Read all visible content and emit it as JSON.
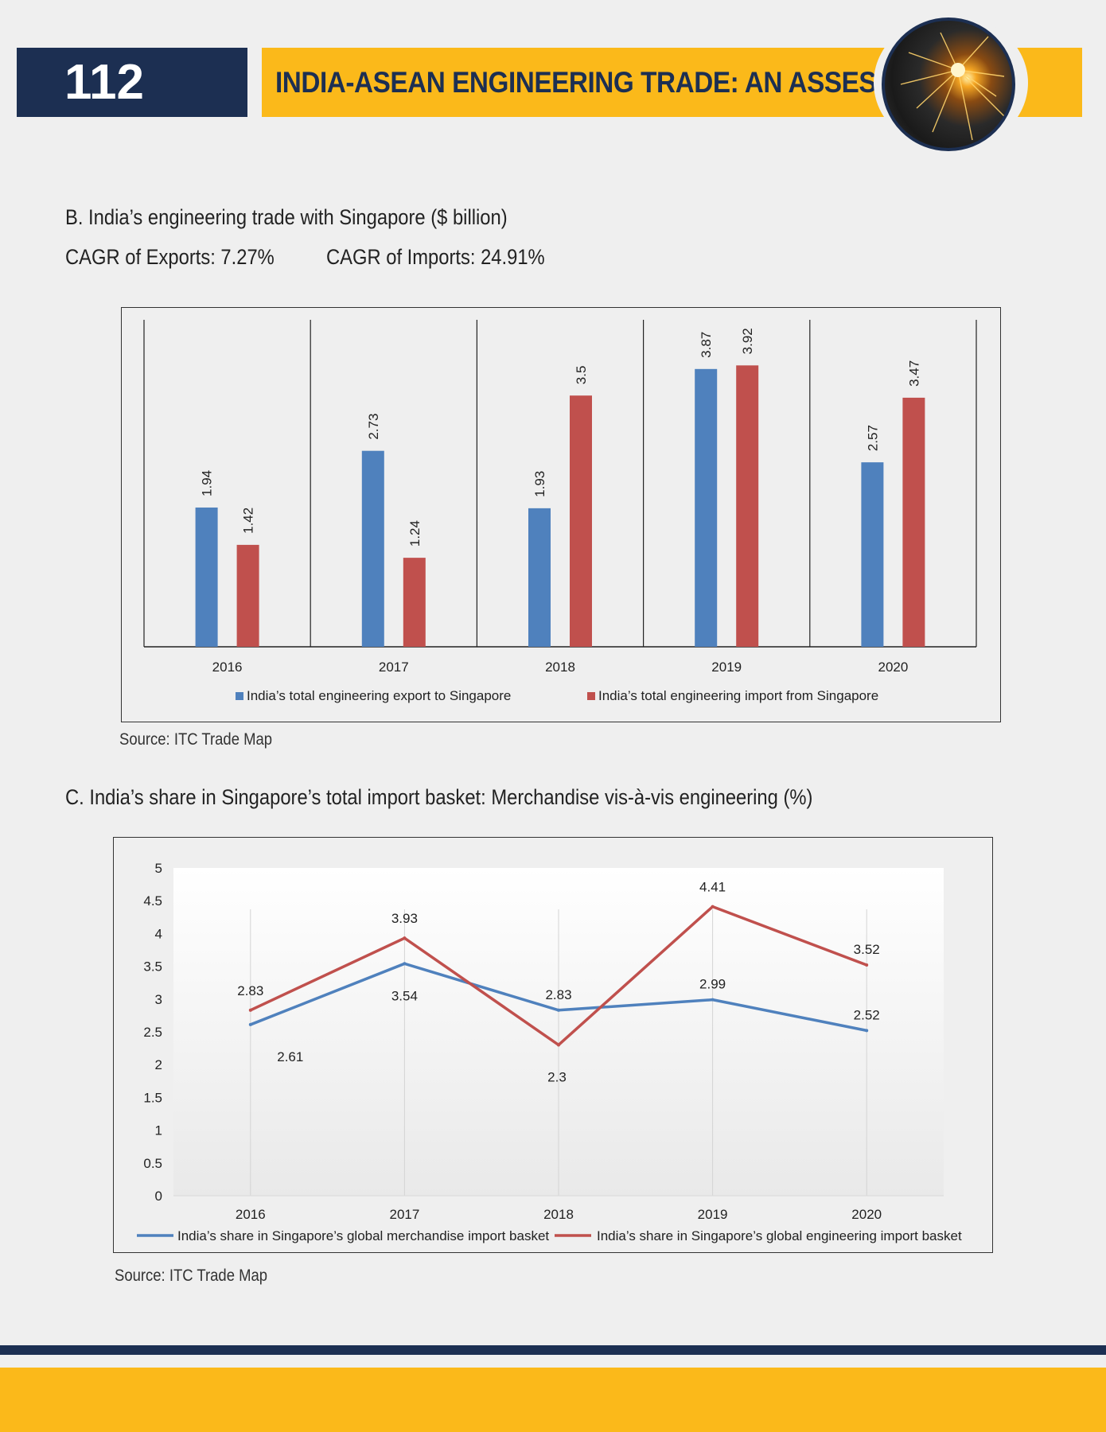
{
  "header": {
    "page_number": "112",
    "title": "INDIA-ASEAN ENGINEERING TRADE: AN ASSESSMENT",
    "badge_icon": "sparks-grinding-icon",
    "colors": {
      "navy": "#1c2f52",
      "yellow": "#fbb91a"
    }
  },
  "section_b": {
    "heading": "B. India’s engineering trade with Singapore ($ billion)",
    "cagr_exports": "CAGR of Exports: 7.27%",
    "cagr_imports": "CAGR of Imports: 24.91%",
    "source": "Source: ITC Trade Map"
  },
  "section_c": {
    "heading": "C. India’s share in Singapore’s total import basket: Merchandise vis-à-vis engineering (%)",
    "source": "Source: ITC Trade Map"
  },
  "chart_data": [
    {
      "type": "bar",
      "categories": [
        "2016",
        "2017",
        "2018",
        "2019",
        "2020"
      ],
      "series": [
        {
          "name": "India’s total engineering export to Singapore",
          "values": [
            1.94,
            2.73,
            1.93,
            3.87,
            2.57
          ],
          "labels": [
            "1.94",
            "2.73",
            "1.93",
            "3.87",
            "2.57"
          ],
          "color": "#4f81bd"
        },
        {
          "name": "India’s total engineering import from Singapore",
          "values": [
            1.42,
            1.24,
            3.5,
            3.92,
            3.47
          ],
          "labels": [
            "1.42",
            "1.24",
            "3.5",
            "3.92",
            "3.47"
          ],
          "color": "#c0504d"
        }
      ],
      "ylim": [
        0,
        4.4
      ],
      "legend": "bottom",
      "grid": false
    },
    {
      "type": "line",
      "categories": [
        "2016",
        "2017",
        "2018",
        "2019",
        "2020"
      ],
      "series": [
        {
          "name": "India’s share in Singapore’s global merchandise import basket",
          "values": [
            2.61,
            3.54,
            2.83,
            2.99,
            2.52
          ],
          "labels": [
            "2.61",
            "3.54",
            "2.83",
            "2.99",
            "2.52"
          ],
          "color": "#4f81bd"
        },
        {
          "name": "India’s share in Singapore’s global engineering import basket",
          "values": [
            2.83,
            3.93,
            2.3,
            4.41,
            3.52
          ],
          "labels": [
            "2.83",
            "3.93",
            "2.3",
            "4.41",
            "3.52"
          ],
          "color": "#c0504d"
        }
      ],
      "yticks": [
        "0",
        "0.5",
        "1",
        "1.5",
        "2",
        "2.5",
        "3",
        "3.5",
        "4",
        "4.5",
        "5"
      ],
      "ylim": [
        0,
        5
      ],
      "legend": "bottom",
      "grid": false
    }
  ]
}
